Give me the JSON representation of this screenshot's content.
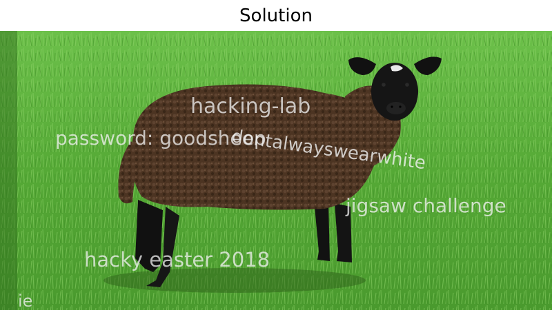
{
  "title": "Solution",
  "photo": {
    "subject_icon": "sheep-photo",
    "watermarks": {
      "hacking_lab": "hacking-lab",
      "password_label": "password: goodsheep",
      "password_rest": "dontalwayswearwhite",
      "jigsaw": "jigsaw challenge",
      "hacky_easter": "hacky easter 2018",
      "corner": "ie"
    }
  },
  "colors": {
    "grass": "#5fb33a",
    "grass_dark": "#3f8a26",
    "wool": "#4a3220",
    "face": "#151515"
  }
}
